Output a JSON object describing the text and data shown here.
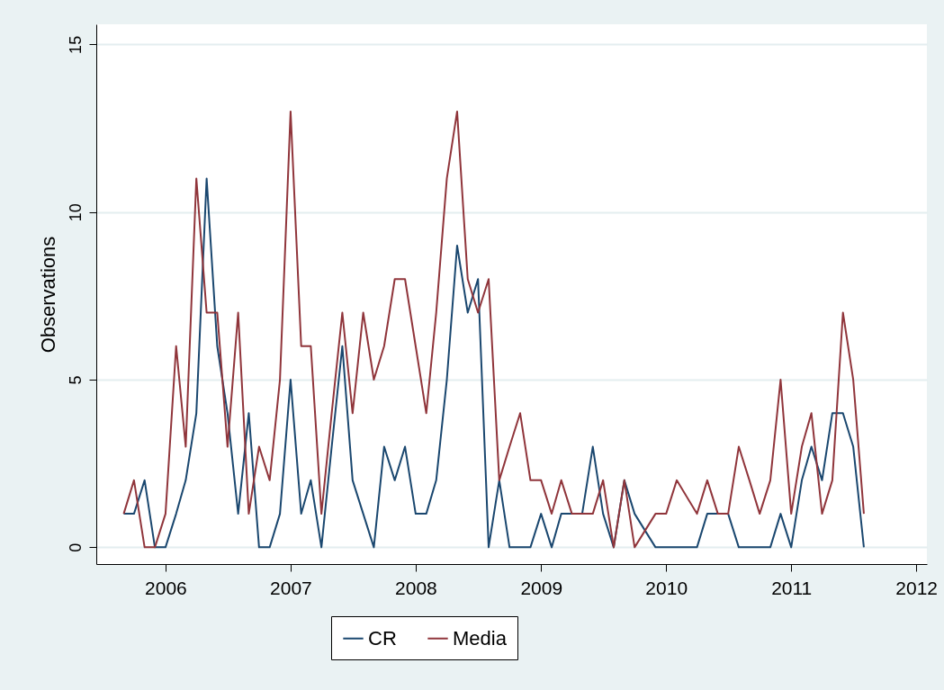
{
  "chart_data": {
    "type": "line",
    "ylabel": "Observations",
    "x": [
      "2005-09",
      "2005-10",
      "2005-11",
      "2005-12",
      "2006-01",
      "2006-02",
      "2006-03",
      "2006-04",
      "2006-05",
      "2006-06",
      "2006-07",
      "2006-08",
      "2006-09",
      "2006-10",
      "2006-11",
      "2006-12",
      "2007-01",
      "2007-02",
      "2007-03",
      "2007-04",
      "2007-05",
      "2007-06",
      "2007-07",
      "2007-08",
      "2007-09",
      "2007-10",
      "2007-11",
      "2007-12",
      "2008-01",
      "2008-02",
      "2008-03",
      "2008-04",
      "2008-05",
      "2008-06",
      "2008-07",
      "2008-08",
      "2008-09",
      "2008-10",
      "2008-11",
      "2008-12",
      "2009-01",
      "2009-02",
      "2009-03",
      "2009-04",
      "2009-05",
      "2009-06",
      "2009-07",
      "2009-08",
      "2009-09",
      "2009-10",
      "2009-12",
      "2010-01",
      "2010-02",
      "2010-04",
      "2010-05",
      "2010-06",
      "2010-07",
      "2010-08",
      "2010-09",
      "2010-10",
      "2010-11",
      "2010-12",
      "2011-01",
      "2011-02",
      "2011-03",
      "2011-04",
      "2011-05",
      "2011-06",
      "2011-07",
      "2011-08"
    ],
    "series": [
      {
        "name": "CR",
        "color": "#1a476f",
        "values": [
          1,
          1,
          2,
          0,
          0,
          1,
          2,
          4,
          11,
          6,
          4,
          1,
          4,
          0,
          0,
          1,
          5,
          1,
          2,
          0,
          3,
          6,
          2,
          1,
          0,
          3,
          2,
          3,
          1,
          1,
          2,
          5,
          9,
          7,
          8,
          0,
          2,
          0,
          0,
          0,
          1,
          0,
          1,
          1,
          1,
          3,
          1,
          0,
          2,
          1,
          0,
          0,
          0,
          0,
          1,
          1,
          1,
          0,
          0,
          0,
          0,
          1,
          0,
          2,
          3,
          2,
          4,
          4,
          3,
          0
        ]
      },
      {
        "name": "Media",
        "color": "#90353b",
        "values": [
          1,
          2,
          0,
          0,
          1,
          6,
          3,
          11,
          7,
          7,
          3,
          7,
          1,
          3,
          2,
          5,
          13,
          6,
          6,
          1,
          4,
          7,
          4,
          7,
          5,
          6,
          8,
          8,
          6,
          4,
          7,
          11,
          13,
          8,
          7,
          8,
          2,
          3,
          4,
          2,
          2,
          1,
          2,
          1,
          1,
          1,
          2,
          0,
          2,
          0,
          1,
          1,
          2,
          1,
          2,
          1,
          1,
          3,
          2,
          1,
          2,
          5,
          1,
          3,
          4,
          1,
          2,
          7,
          5,
          1
        ]
      }
    ],
    "xlim": [
      "2005-06-13",
      "2012-02-01"
    ],
    "xticks": [
      "2006",
      "2007",
      "2008",
      "2009",
      "2010",
      "2011",
      "2012"
    ],
    "ylim": [
      -0.5,
      15.6
    ],
    "yticks": [
      0,
      5,
      10,
      15
    ],
    "grid": "y",
    "legend": "bottom",
    "marker": "none",
    "line_style": "solid"
  }
}
